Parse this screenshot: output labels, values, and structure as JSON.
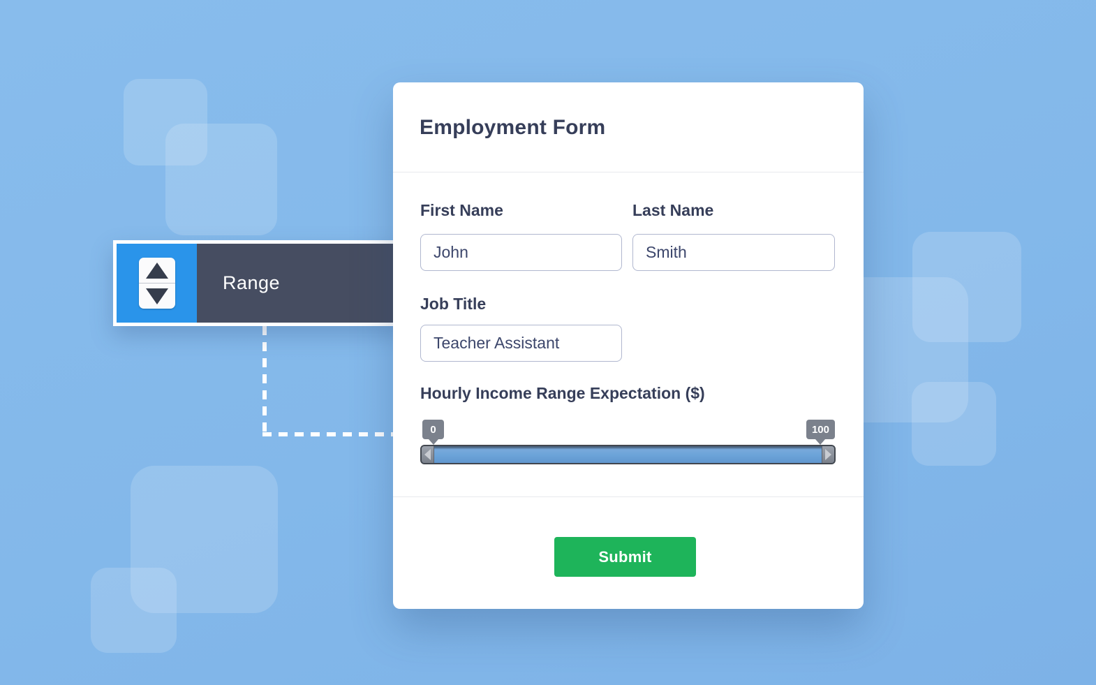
{
  "range_widget": {
    "label": "Range",
    "icon": "up-down-stepper-icon",
    "accent_blue": "#2a94ea",
    "dark_slate": "#464d61"
  },
  "form": {
    "title": "Employment Form",
    "first_name": {
      "label": "First Name",
      "value": "John"
    },
    "last_name": {
      "label": "Last Name",
      "value": "Smith"
    },
    "job_title": {
      "label": "Job Title",
      "value": "Teacher Assistant"
    },
    "income_range": {
      "label": "Hourly Income Range Expectation ($)",
      "min": "0",
      "max": "100"
    },
    "submit_label": "Submit"
  },
  "colors": {
    "background_blue": "#83b8ea",
    "submit_green": "#1eb45a",
    "heading_navy": "#363e59",
    "slider_fill": "#6ba3d8"
  }
}
